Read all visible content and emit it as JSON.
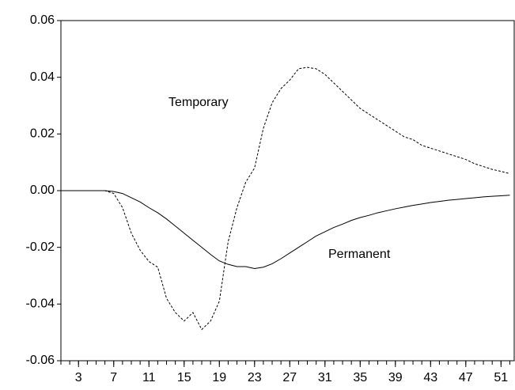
{
  "chart_data": {
    "type": "line",
    "x": [
      1,
      2,
      3,
      4,
      5,
      6,
      7,
      8,
      9,
      10,
      11,
      12,
      13,
      14,
      15,
      16,
      17,
      18,
      19,
      20,
      21,
      22,
      23,
      24,
      25,
      26,
      27,
      28,
      29,
      30,
      31,
      32,
      33,
      34,
      35,
      36,
      37,
      38,
      39,
      40,
      41,
      42,
      43,
      44,
      45,
      46,
      47,
      48,
      49,
      50,
      51,
      52
    ],
    "series": [
      {
        "name": "Temporary",
        "color": "#000000",
        "style": "dashed",
        "values": [
          0,
          0,
          0,
          0,
          0,
          0,
          -0.001,
          -0.006,
          -0.015,
          -0.021,
          -0.025,
          -0.027,
          -0.038,
          -0.043,
          -0.046,
          -0.043,
          -0.049,
          -0.046,
          -0.039,
          -0.018,
          -0.006,
          0.003,
          0.008,
          0.022,
          0.031,
          0.036,
          0.039,
          0.043,
          0.0435,
          0.043,
          0.041,
          0.038,
          0.035,
          0.032,
          0.029,
          0.027,
          0.025,
          0.023,
          0.021,
          0.019,
          0.018,
          0.016,
          0.015,
          0.014,
          0.013,
          0.012,
          0.011,
          0.0095,
          0.0085,
          0.0075,
          0.0068,
          0.006
        ]
      },
      {
        "name": "Permanent",
        "color": "#000000",
        "style": "solid",
        "values": [
          0,
          0,
          0,
          0,
          0,
          0,
          -0.0003,
          -0.001,
          -0.0025,
          -0.004,
          -0.006,
          -0.0078,
          -0.01,
          -0.0125,
          -0.015,
          -0.0175,
          -0.02,
          -0.0225,
          -0.0248,
          -0.026,
          -0.0268,
          -0.0268,
          -0.0275,
          -0.027,
          -0.0258,
          -0.024,
          -0.022,
          -0.02,
          -0.018,
          -0.016,
          -0.0145,
          -0.013,
          -0.0118,
          -0.0105,
          -0.0095,
          -0.0087,
          -0.0078,
          -0.0071,
          -0.0064,
          -0.0058,
          -0.0052,
          -0.0047,
          -0.0042,
          -0.0038,
          -0.0034,
          -0.0031,
          -0.0028,
          -0.0025,
          -0.0022,
          -0.002,
          -0.0018,
          -0.0016
        ]
      }
    ],
    "xlim": [
      1,
      52.5
    ],
    "xticks": [
      3,
      7,
      11,
      15,
      19,
      23,
      27,
      31,
      35,
      39,
      43,
      47,
      51
    ],
    "ylim": [
      -0.06,
      0.06
    ],
    "yticks": [
      {
        "value": -0.06,
        "label": "-0.06"
      },
      {
        "value": -0.04,
        "label": "-0.04"
      },
      {
        "value": -0.02,
        "label": "-0.02"
      },
      {
        "value": 0,
        "label": "0.00"
      },
      {
        "value": 0.02,
        "label": "0.02"
      },
      {
        "value": 0.04,
        "label": "0.04"
      },
      {
        "value": 0.06,
        "label": "0.06"
      }
    ]
  }
}
